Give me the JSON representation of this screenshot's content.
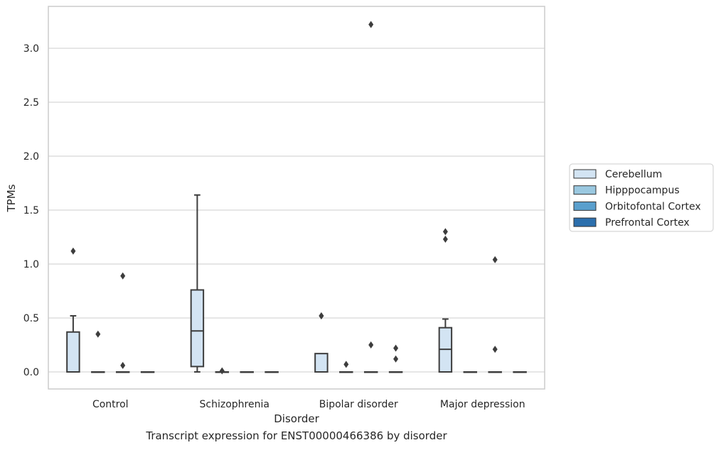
{
  "chart_data": {
    "type": "box",
    "title": "",
    "caption": "Transcript expression for ENST00000466386 by disorder",
    "xlabel": "Disorder",
    "ylabel": "TPMs",
    "ylim": [
      -0.16,
      3.4
    ],
    "yticks": [
      0.0,
      0.5,
      1.0,
      1.5,
      2.0,
      2.5,
      3.0
    ],
    "ytick_labels": [
      "0.0",
      "0.5",
      "1.0",
      "1.5",
      "2.0",
      "2.5",
      "3.0"
    ],
    "grid": "horizontal",
    "legend_position": "right",
    "categories": [
      "Control",
      "Schizophrenia",
      "Bipolar disorder",
      "Major depression"
    ],
    "series": [
      {
        "name": "Cerebellum",
        "color": "#d3e4f3",
        "boxes": [
          {
            "q1": 0.0,
            "median": 0.0,
            "q3": 0.37,
            "whislo": 0.0,
            "whishi": 0.52,
            "fliers": [
              1.12
            ]
          },
          {
            "q1": 0.05,
            "median": 0.38,
            "q3": 0.76,
            "whislo": 0.0,
            "whishi": 1.64,
            "fliers": []
          },
          {
            "q1": 0.0,
            "median": 0.0,
            "q3": 0.17,
            "whislo": 0.0,
            "whishi": 0.17,
            "fliers": [
              0.52,
              0.52
            ]
          },
          {
            "q1": 0.0,
            "median": 0.21,
            "q3": 0.41,
            "whislo": 0.0,
            "whishi": 0.49,
            "fliers": [
              1.23,
              1.3
            ]
          }
        ]
      },
      {
        "name": "Hipppocampus",
        "color": "#9ac8e0",
        "boxes": [
          {
            "q1": 0.0,
            "median": 0.0,
            "q3": 0.0,
            "whislo": 0.0,
            "whishi": 0.0,
            "fliers": [
              0.35
            ]
          },
          {
            "q1": 0.0,
            "median": 0.0,
            "q3": 0.0,
            "whislo": 0.0,
            "whishi": 0.0,
            "fliers": [
              0.01
            ]
          },
          {
            "q1": 0.0,
            "median": 0.0,
            "q3": 0.0,
            "whislo": 0.0,
            "whishi": 0.0,
            "fliers": [
              0.07
            ]
          },
          {
            "q1": 0.0,
            "median": 0.0,
            "q3": 0.0,
            "whislo": 0.0,
            "whishi": 0.0,
            "fliers": []
          }
        ]
      },
      {
        "name": "Orbitofontal Cortex",
        "color": "#5a9fcd",
        "boxes": [
          {
            "q1": 0.0,
            "median": 0.0,
            "q3": 0.0,
            "whislo": 0.0,
            "whishi": 0.0,
            "fliers": [
              0.06,
              0.89
            ]
          },
          {
            "q1": 0.0,
            "median": 0.0,
            "q3": 0.0,
            "whislo": 0.0,
            "whishi": 0.0,
            "fliers": []
          },
          {
            "q1": 0.0,
            "median": 0.0,
            "q3": 0.0,
            "whislo": 0.0,
            "whishi": 0.0,
            "fliers": [
              0.25,
              3.22
            ]
          },
          {
            "q1": 0.0,
            "median": 0.0,
            "q3": 0.0,
            "whislo": 0.0,
            "whishi": 0.0,
            "fliers": [
              0.21,
              1.04
            ]
          }
        ]
      },
      {
        "name": "Prefrontal Cortex",
        "color": "#2c6fad",
        "boxes": [
          {
            "q1": 0.0,
            "median": 0.0,
            "q3": 0.0,
            "whislo": 0.0,
            "whishi": 0.0,
            "fliers": []
          },
          {
            "q1": 0.0,
            "median": 0.0,
            "q3": 0.0,
            "whislo": 0.0,
            "whishi": 0.0,
            "fliers": []
          },
          {
            "q1": 0.0,
            "median": 0.0,
            "q3": 0.0,
            "whislo": 0.0,
            "whishi": 0.0,
            "fliers": [
              0.12,
              0.22
            ]
          },
          {
            "q1": 0.0,
            "median": 0.0,
            "q3": 0.0,
            "whislo": 0.0,
            "whishi": 0.0,
            "fliers": []
          }
        ]
      }
    ]
  }
}
